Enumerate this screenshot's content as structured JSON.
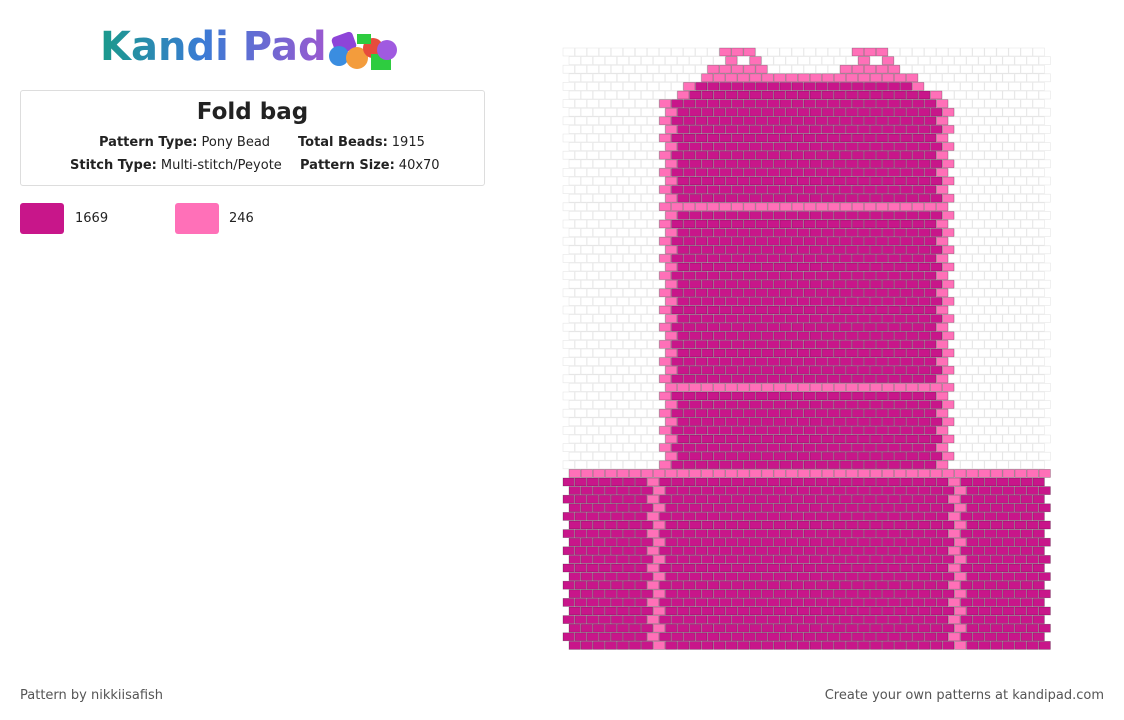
{
  "header": {
    "logo": "Kandi Pad",
    "title": "Fold bag",
    "info": [
      {
        "label": "Pattern Type:",
        "value": "Pony Bead"
      },
      {
        "label": "Total Beads:",
        "value": "1915"
      },
      {
        "label": "Stitch Type:",
        "value": "Multi-stitch/Peyote"
      },
      {
        "label": "Pattern Size:",
        "value": "40x70"
      }
    ]
  },
  "legend": [
    {
      "color": "#c8168a",
      "count": "1669"
    },
    {
      "color": "#ff70b8",
      "count": "246"
    }
  ],
  "footer": {
    "credit": "Pattern by nikkiisafish",
    "promo": "Create your own patterns at kandipad.com"
  }
}
